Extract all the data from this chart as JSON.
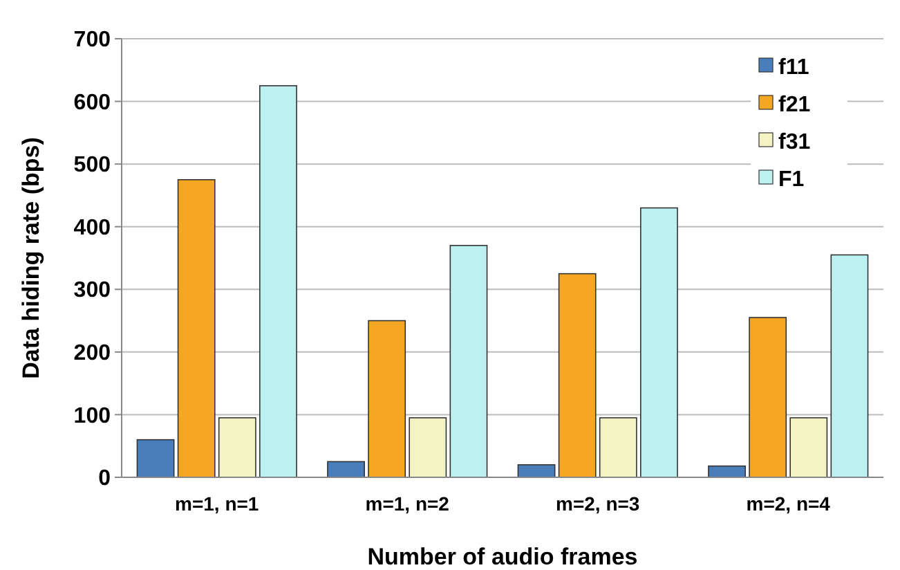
{
  "chart_data": {
    "type": "bar",
    "xlabel": "Number of audio frames",
    "ylabel": "Data hiding rate (bps)",
    "categories": [
      "m=1, n=1",
      "m=1, n=2",
      "m=2, n=3",
      "m=2, n=4"
    ],
    "series": [
      {
        "name": "f11",
        "color": "#4a7ebb",
        "values": [
          60,
          25,
          20,
          18
        ]
      },
      {
        "name": "f21",
        "color": "#f5a623",
        "values": [
          475,
          250,
          325,
          255
        ]
      },
      {
        "name": "f31",
        "color": "#f3f3c4",
        "values": [
          95,
          95,
          95,
          95
        ]
      },
      {
        "name": "F1",
        "color": "#bdf0f0",
        "values": [
          625,
          370,
          430,
          355
        ]
      }
    ],
    "ylim": [
      0,
      700
    ],
    "yticks": [
      0,
      100,
      200,
      300,
      400,
      500,
      600,
      700
    ],
    "grid": "y",
    "legend": "top right"
  }
}
